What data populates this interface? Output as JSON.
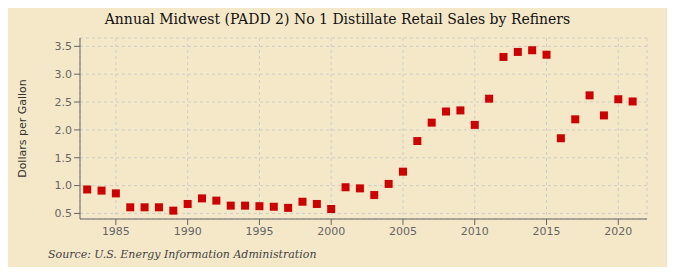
{
  "chart_data": {
    "type": "scatter",
    "title": "Annual Midwest (PADD 2) No 1 Distillate Retail Sales by Refiners",
    "ylabel": "Dollars per Gallon",
    "annotations": [
      "Source: U.S. Energy Information Administration"
    ],
    "color": "#cc0000",
    "marker": "square",
    "grid": true,
    "x": [
      1983,
      1984,
      1985,
      1986,
      1987,
      1988,
      1989,
      1990,
      1991,
      1992,
      1993,
      1994,
      1995,
      1996,
      1997,
      1998,
      1999,
      2000,
      2001,
      2002,
      2003,
      2004,
      2005,
      2006,
      2007,
      2008,
      2009,
      2010,
      2011,
      2012,
      2013,
      2014,
      2015,
      2016,
      2017,
      2018,
      2019,
      2020,
      2021
    ],
    "values": [
      0.93,
      0.91,
      0.86,
      0.61,
      0.61,
      0.61,
      0.55,
      0.67,
      0.77,
      0.73,
      0.64,
      0.64,
      0.63,
      0.62,
      0.6,
      0.71,
      0.67,
      0.58,
      0.97,
      0.95,
      0.83,
      1.03,
      1.25,
      1.8,
      2.13,
      2.33,
      2.35,
      2.09,
      2.56,
      3.31,
      3.4,
      3.43,
      3.35,
      1.85,
      2.19,
      2.62,
      2.26,
      2.55,
      2.51
    ],
    "xlim": [
      1982.5,
      2022
    ],
    "ylim": [
      0.4,
      3.65
    ],
    "xticks": [
      1985,
      1990,
      1995,
      2000,
      2005,
      2010,
      2015,
      2020
    ],
    "yticks": [
      0.5,
      {
        "value": 1.0,
        "label": "1.0"
      },
      1.5,
      {
        "value": 2.0,
        "label": "2.0"
      },
      2.5,
      {
        "value": 3.0,
        "label": "3.0"
      },
      3.5
    ]
  }
}
